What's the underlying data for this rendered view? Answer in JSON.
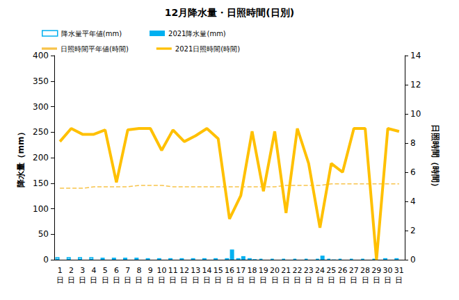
{
  "chart_data": {
    "type": "bar",
    "title": "12月降水量・日照時間(日別)",
    "y_label": "降水量（mm）",
    "y2_label": "日照時間（時間）",
    "categories": [
      "1\n日",
      "2\n日",
      "3\n日",
      "4\n日",
      "5\n日",
      "6\n日",
      "7\n日",
      "8\n日",
      "9\n日",
      "10\n日",
      "11\n日",
      "12\n日",
      "13\n日",
      "14\n日",
      "15\n日",
      "16\n日",
      "17\n日",
      "18\n日",
      "19\n日",
      "20\n日",
      "21\n日",
      "22\n日",
      "23\n日",
      "24\n日",
      "25\n日",
      "26\n日",
      "27\n日",
      "28\n日",
      "29\n日",
      "30\n日",
      "31\n日"
    ],
    "series": [
      {
        "name": "降水量平年値(mm)",
        "type": "bar",
        "marker": "hollow",
        "color": "#00b0f0",
        "values": [
          5,
          5,
          5,
          5,
          4,
          4,
          4,
          4,
          3,
          3,
          3,
          3,
          3,
          3,
          3,
          3,
          3,
          3,
          2,
          2,
          2,
          2,
          2,
          2,
          2,
          2,
          2,
          2,
          2,
          3,
          3
        ]
      },
      {
        "name": "2021降水量(mm)",
        "type": "bar",
        "marker": "filled",
        "color": "#00b0f0",
        "values": [
          0,
          0,
          0,
          0,
          0,
          0,
          0,
          0,
          0,
          0,
          0,
          0,
          0,
          0,
          0,
          20,
          7,
          1,
          0,
          0,
          0,
          0,
          0,
          8,
          0.5,
          0,
          0,
          0,
          0,
          0,
          0
        ]
      },
      {
        "name": "日照時間平年値(時間)",
        "type": "line",
        "axis": "y2",
        "line_style": "dashed",
        "color": "#f7c34a",
        "values": [
          4.9,
          4.9,
          4.9,
          5.0,
          5.0,
          5.0,
          5.0,
          5.1,
          5.1,
          5.1,
          5.0,
          5.0,
          5.0,
          5.0,
          5.0,
          5.0,
          5.0,
          5.0,
          5.0,
          5.0,
          5.1,
          5.1,
          5.1,
          5.1,
          5.2,
          5.2,
          5.2,
          5.2,
          5.2,
          5.2,
          5.2
        ]
      },
      {
        "name": "2021日照時間(時間)",
        "type": "line",
        "axis": "y2",
        "line_style": "solid",
        "color": "#ffc000",
        "values": [
          8.1,
          9.0,
          8.6,
          8.6,
          8.9,
          5.3,
          8.9,
          9.0,
          9.0,
          7.5,
          8.9,
          8.1,
          8.5,
          9.0,
          8.3,
          2.8,
          4.4,
          8.8,
          4.7,
          8.8,
          3.2,
          9.0,
          6.6,
          2.2,
          6.6,
          6.0,
          9.0,
          9.0,
          0.0,
          9.0,
          8.8
        ]
      }
    ],
    "ylim": [
      0,
      400
    ],
    "yticks": [
      0,
      50,
      100,
      150,
      200,
      250,
      300,
      350,
      400
    ],
    "y2lim": [
      0,
      14
    ],
    "y2ticks": [
      0,
      2,
      4,
      6,
      8,
      10,
      12,
      14
    ],
    "grid": false,
    "legend": "top"
  }
}
